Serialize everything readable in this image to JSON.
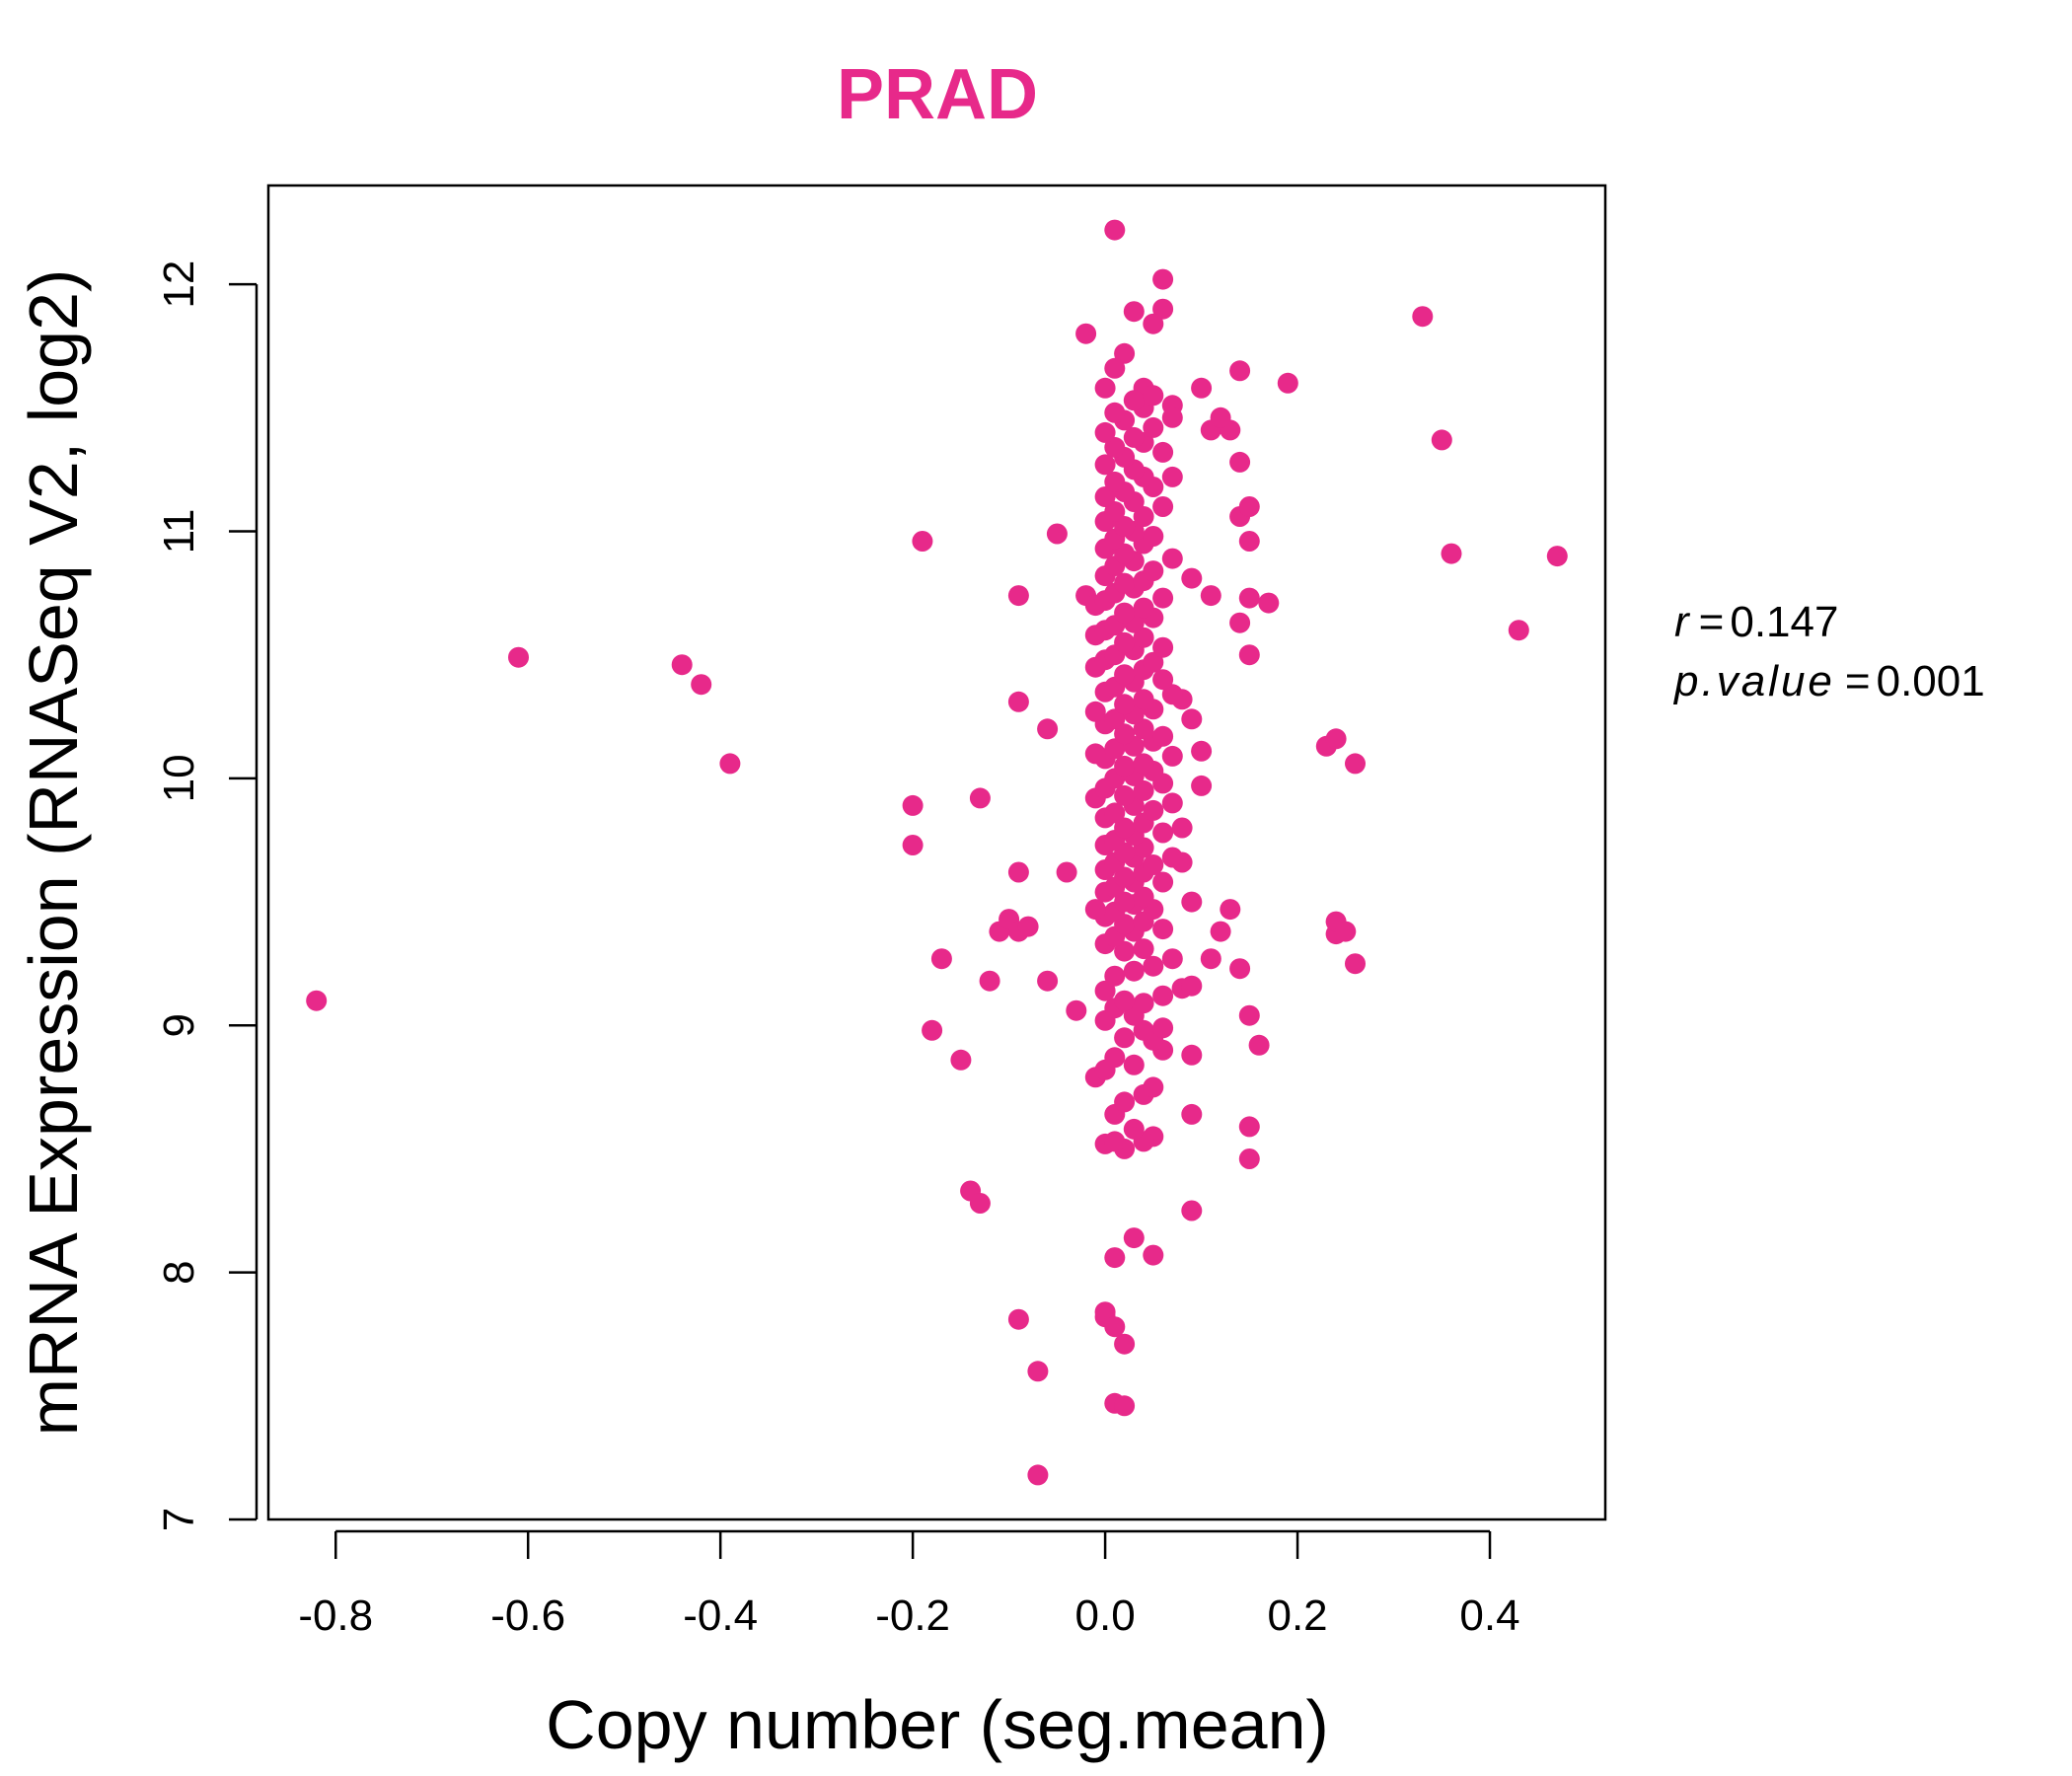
{
  "chart_data": {
    "type": "scatter",
    "title": "PRAD",
    "xlabel": "Copy number (seg.mean)",
    "ylabel": "mRNA Expression (RNASeq V2, log2)",
    "xlim": [
      -0.87,
      0.52
    ],
    "ylim": [
      7.0,
      12.4
    ],
    "xticks": [
      "-0.8",
      "-0.6",
      "-0.4",
      "-0.2",
      "0.0",
      "0.2",
      "0.4"
    ],
    "yticks": [
      "7",
      "8",
      "9",
      "10",
      "11",
      "12"
    ],
    "grid": false,
    "point_color": "#E7298A",
    "stats": {
      "r_label": "r",
      "r_value": "0.147",
      "p_label": "p.value",
      "p_value": "0.001"
    },
    "points": [
      [
        -0.82,
        9.1
      ],
      [
        -0.61,
        10.49
      ],
      [
        -0.44,
        10.46
      ],
      [
        -0.42,
        10.38
      ],
      [
        -0.39,
        10.06
      ],
      [
        -0.2,
        9.89
      ],
      [
        -0.2,
        9.73
      ],
      [
        -0.19,
        10.96
      ],
      [
        -0.18,
        8.98
      ],
      [
        -0.17,
        9.27
      ],
      [
        -0.15,
        8.86
      ],
      [
        -0.14,
        8.33
      ],
      [
        -0.13,
        8.28
      ],
      [
        -0.13,
        9.92
      ],
      [
        -0.12,
        9.18
      ],
      [
        -0.11,
        9.38
      ],
      [
        -0.1,
        9.43
      ],
      [
        -0.09,
        9.38
      ],
      [
        -0.09,
        9.62
      ],
      [
        -0.09,
        10.31
      ],
      [
        -0.09,
        10.74
      ],
      [
        -0.09,
        7.81
      ],
      [
        -0.08,
        9.4
      ],
      [
        -0.07,
        7.6
      ],
      [
        -0.07,
        7.18
      ],
      [
        -0.06,
        9.18
      ],
      [
        -0.06,
        10.2
      ],
      [
        -0.05,
        10.99
      ],
      [
        -0.04,
        9.62
      ],
      [
        -0.03,
        9.06
      ],
      [
        -0.02,
        10.74
      ],
      [
        -0.02,
        11.8
      ],
      [
        -0.01,
        8.79
      ],
      [
        0.0,
        7.82
      ],
      [
        0.0,
        7.84
      ],
      [
        0.01,
        7.78
      ],
      [
        0.01,
        8.06
      ],
      [
        0.01,
        7.47
      ],
      [
        0.02,
        7.71
      ],
      [
        0.02,
        7.46
      ],
      [
        0.03,
        8.14
      ],
      [
        0.05,
        8.07
      ],
      [
        0.09,
        8.25
      ],
      [
        0.15,
        8.46
      ],
      [
        0.15,
        8.59
      ],
      [
        0.09,
        8.64
      ],
      [
        0.16,
        8.92
      ],
      [
        0.15,
        9.04
      ],
      [
        0.14,
        9.23
      ],
      [
        0.11,
        9.27
      ],
      [
        0.12,
        9.38
      ],
      [
        0.13,
        9.47
      ],
      [
        0.09,
        9.5
      ],
      [
        0.08,
        9.66
      ],
      [
        0.1,
        9.97
      ],
      [
        0.1,
        10.11
      ],
      [
        0.09,
        10.24
      ],
      [
        0.08,
        10.32
      ],
      [
        0.15,
        10.5
      ],
      [
        0.14,
        10.63
      ],
      [
        0.15,
        10.73
      ],
      [
        0.17,
        10.71
      ],
      [
        0.11,
        10.74
      ],
      [
        0.09,
        10.81
      ],
      [
        0.15,
        10.96
      ],
      [
        0.14,
        11.06
      ],
      [
        0.15,
        11.1
      ],
      [
        0.14,
        11.28
      ],
      [
        0.11,
        11.41
      ],
      [
        0.13,
        11.41
      ],
      [
        0.12,
        11.46
      ],
      [
        0.1,
        11.58
      ],
      [
        0.14,
        11.65
      ],
      [
        0.19,
        11.6
      ],
      [
        0.07,
        11.51
      ],
      [
        0.06,
        11.9
      ],
      [
        0.06,
        12.02
      ],
      [
        0.05,
        11.84
      ],
      [
        0.03,
        11.89
      ],
      [
        0.01,
        12.22
      ],
      [
        0.02,
        11.72
      ],
      [
        0.01,
        11.66
      ],
      [
        0.0,
        11.58
      ],
      [
        0.04,
        11.58
      ],
      [
        0.07,
        11.22
      ],
      [
        0.33,
        11.87
      ],
      [
        0.35,
        11.37
      ],
      [
        0.36,
        10.91
      ],
      [
        0.47,
        10.9
      ],
      [
        0.43,
        10.6
      ],
      [
        0.23,
        10.13
      ],
      [
        0.24,
        10.16
      ],
      [
        0.26,
        10.06
      ],
      [
        0.24,
        9.37
      ],
      [
        0.24,
        9.42
      ],
      [
        0.25,
        9.38
      ],
      [
        0.26,
        9.25
      ],
      [
        0.02,
        8.5
      ],
      [
        0.0,
        8.52
      ],
      [
        0.01,
        8.53
      ],
      [
        0.05,
        8.55
      ],
      [
        0.04,
        8.53
      ],
      [
        0.03,
        8.58
      ],
      [
        0.01,
        8.64
      ],
      [
        0.02,
        8.69
      ],
      [
        0.04,
        8.72
      ],
      [
        0.05,
        8.75
      ],
      [
        0.0,
        8.82
      ],
      [
        0.03,
        8.84
      ],
      [
        0.01,
        8.87
      ],
      [
        0.06,
        8.9
      ],
      [
        0.09,
        8.88
      ],
      [
        0.02,
        8.95
      ],
      [
        0.05,
        8.94
      ],
      [
        0.04,
        8.98
      ],
      [
        0.06,
        8.99
      ],
      [
        0.0,
        9.02
      ],
      [
        0.03,
        9.04
      ],
      [
        0.01,
        9.07
      ],
      [
        0.04,
        9.09
      ],
      [
        0.02,
        9.1
      ],
      [
        0.06,
        9.12
      ],
      [
        0.08,
        9.15
      ],
      [
        0.09,
        9.16
      ],
      [
        0.0,
        9.14
      ],
      [
        0.01,
        9.2
      ],
      [
        0.03,
        9.22
      ],
      [
        0.05,
        9.24
      ],
      [
        0.07,
        9.27
      ],
      [
        0.02,
        9.3
      ],
      [
        0.04,
        9.31
      ],
      [
        0.0,
        9.33
      ],
      [
        0.01,
        9.36
      ],
      [
        0.03,
        9.38
      ],
      [
        0.06,
        9.39
      ],
      [
        0.02,
        9.41
      ],
      [
        0.04,
        9.42
      ],
      [
        0.0,
        9.44
      ],
      [
        0.01,
        9.46
      ],
      [
        0.05,
        9.47
      ],
      [
        0.03,
        9.49
      ],
      [
        -0.01,
        9.47
      ],
      [
        0.02,
        9.5
      ],
      [
        0.04,
        9.52
      ],
      [
        0.0,
        9.54
      ],
      [
        0.01,
        9.56
      ],
      [
        0.03,
        9.58
      ],
      [
        0.06,
        9.58
      ],
      [
        0.02,
        9.6
      ],
      [
        0.04,
        9.62
      ],
      [
        0.0,
        9.63
      ],
      [
        0.05,
        9.65
      ],
      [
        0.01,
        9.66
      ],
      [
        0.03,
        9.68
      ],
      [
        0.07,
        9.68
      ],
      [
        0.02,
        9.7
      ],
      [
        0.04,
        9.72
      ],
      [
        0.0,
        9.73
      ],
      [
        0.01,
        9.75
      ],
      [
        0.03,
        9.77
      ],
      [
        0.06,
        9.78
      ],
      [
        0.08,
        9.8
      ],
      [
        0.02,
        9.8
      ],
      [
        0.04,
        9.82
      ],
      [
        0.0,
        9.84
      ],
      [
        0.01,
        9.86
      ],
      [
        0.05,
        9.87
      ],
      [
        0.03,
        9.89
      ],
      [
        0.07,
        9.9
      ],
      [
        -0.01,
        9.92
      ],
      [
        0.02,
        9.93
      ],
      [
        0.04,
        9.95
      ],
      [
        0.0,
        9.96
      ],
      [
        0.06,
        9.98
      ],
      [
        0.01,
        10.0
      ],
      [
        0.03,
        10.01
      ],
      [
        0.05,
        10.03
      ],
      [
        0.02,
        10.05
      ],
      [
        0.04,
        10.06
      ],
      [
        0.0,
        10.08
      ],
      [
        0.07,
        10.09
      ],
      [
        -0.01,
        10.1
      ],
      [
        0.01,
        10.12
      ],
      [
        0.03,
        10.13
      ],
      [
        0.05,
        10.15
      ],
      [
        0.06,
        10.17
      ],
      [
        0.02,
        10.18
      ],
      [
        0.04,
        10.2
      ],
      [
        0.0,
        10.22
      ],
      [
        0.01,
        10.24
      ],
      [
        0.03,
        10.26
      ],
      [
        -0.01,
        10.27
      ],
      [
        0.05,
        10.28
      ],
      [
        0.02,
        10.3
      ],
      [
        0.04,
        10.32
      ],
      [
        0.07,
        10.34
      ],
      [
        0.0,
        10.35
      ],
      [
        0.01,
        10.37
      ],
      [
        0.03,
        10.39
      ],
      [
        0.06,
        10.4
      ],
      [
        0.02,
        10.42
      ],
      [
        0.04,
        10.44
      ],
      [
        -0.01,
        10.45
      ],
      [
        0.05,
        10.47
      ],
      [
        0.0,
        10.48
      ],
      [
        0.01,
        10.5
      ],
      [
        0.03,
        10.52
      ],
      [
        0.06,
        10.53
      ],
      [
        0.02,
        10.55
      ],
      [
        0.04,
        10.57
      ],
      [
        -0.01,
        10.58
      ],
      [
        0.0,
        10.6
      ],
      [
        0.01,
        10.62
      ],
      [
        0.03,
        10.63
      ],
      [
        0.05,
        10.65
      ],
      [
        0.02,
        10.67
      ],
      [
        0.04,
        10.69
      ],
      [
        -0.01,
        10.7
      ],
      [
        0.0,
        10.72
      ],
      [
        0.06,
        10.73
      ],
      [
        0.01,
        10.75
      ],
      [
        0.03,
        10.77
      ],
      [
        0.02,
        10.79
      ],
      [
        0.04,
        10.8
      ],
      [
        0.0,
        10.82
      ],
      [
        0.05,
        10.84
      ],
      [
        0.01,
        10.86
      ],
      [
        0.03,
        10.88
      ],
      [
        0.07,
        10.89
      ],
      [
        0.02,
        10.91
      ],
      [
        0.0,
        10.93
      ],
      [
        0.04,
        10.95
      ],
      [
        0.01,
        10.97
      ],
      [
        0.05,
        10.98
      ],
      [
        0.03,
        11.0
      ],
      [
        0.02,
        11.02
      ],
      [
        0.0,
        11.04
      ],
      [
        0.04,
        11.06
      ],
      [
        0.01,
        11.08
      ],
      [
        0.06,
        11.1
      ],
      [
        0.03,
        11.12
      ],
      [
        0.0,
        11.14
      ],
      [
        0.02,
        11.16
      ],
      [
        0.05,
        11.18
      ],
      [
        0.01,
        11.2
      ],
      [
        0.04,
        11.22
      ],
      [
        0.03,
        11.25
      ],
      [
        0.0,
        11.27
      ],
      [
        0.02,
        11.3
      ],
      [
        0.06,
        11.32
      ],
      [
        0.01,
        11.34
      ],
      [
        0.04,
        11.36
      ],
      [
        0.03,
        11.38
      ],
      [
        0.0,
        11.4
      ],
      [
        0.05,
        11.42
      ],
      [
        0.02,
        11.45
      ],
      [
        0.07,
        11.46
      ],
      [
        0.01,
        11.48
      ],
      [
        0.04,
        11.5
      ],
      [
        0.03,
        11.53
      ],
      [
        0.05,
        11.55
      ]
    ]
  }
}
